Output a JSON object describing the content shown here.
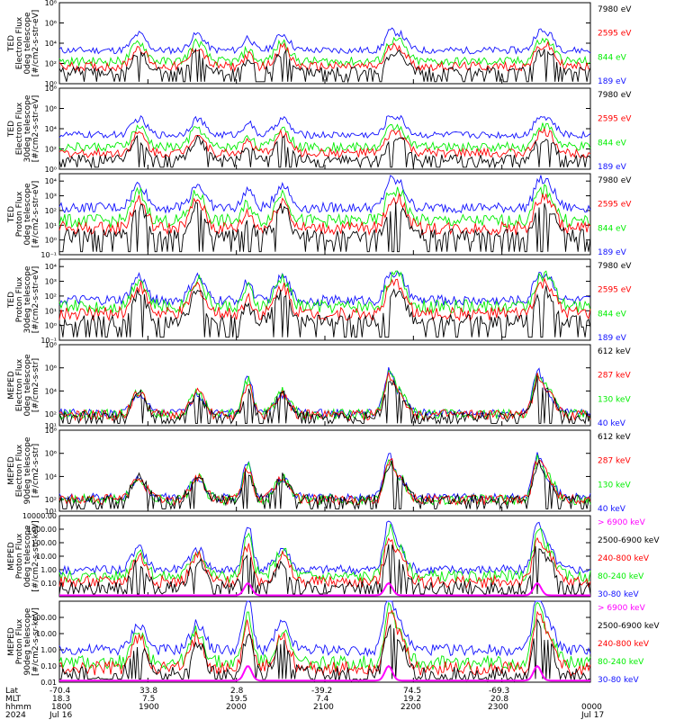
{
  "colors": {
    "blue": "#1010ff",
    "red": "#ff0000",
    "green": "#00ee00",
    "black": "#000000",
    "magenta": "#ff00ff"
  },
  "chart_data": [
    {
      "type": "line",
      "ylabel": [
        "TED",
        "Electron Flux",
        "0deg telescope",
        "[#/cm2-s-str-eV]"
      ],
      "log": true,
      "ylim_exp": [
        0,
        8
      ],
      "ticks": [
        {
          "e": 0,
          "t": "10⁰"
        },
        {
          "e": 2,
          "t": "10²"
        },
        {
          "e": 4,
          "t": "10⁴"
        },
        {
          "e": 6,
          "t": "10⁶"
        },
        {
          "e": 8,
          "t": "10⁸"
        }
      ],
      "baseline": [
        1.2,
        2.2,
        3.3
      ],
      "series": [
        {
          "name": "7980 eV",
          "color": "black"
        },
        {
          "name": "2595 eV",
          "color": "red"
        },
        {
          "name": "844 eV",
          "color": "green"
        },
        {
          "name": "189 eV",
          "color": "blue"
        }
      ]
    },
    {
      "type": "line",
      "ylabel": [
        "TED",
        "Electron Flux",
        "30deg telescope",
        "[#/cm2-s-str-eV]"
      ],
      "log": true,
      "ylim_exp": [
        0,
        8
      ],
      "ticks": [
        {
          "e": 0,
          "t": "10⁰"
        },
        {
          "e": 2,
          "t": "10²"
        },
        {
          "e": 4,
          "t": "10⁴"
        },
        {
          "e": 6,
          "t": "10⁶"
        },
        {
          "e": 8,
          "t": "10⁸"
        }
      ],
      "baseline": [
        1.0,
        2.2,
        3.4
      ],
      "series": [
        {
          "name": "7980 eV",
          "color": "black"
        },
        {
          "name": "2595 eV",
          "color": "red"
        },
        {
          "name": "844 eV",
          "color": "green"
        },
        {
          "name": "189 eV",
          "color": "blue"
        }
      ]
    },
    {
      "type": "line",
      "ylabel": [
        "TED",
        "Proton Flux",
        "0deg telescope",
        "[#/cm2-s-str-eV]"
      ],
      "log": true,
      "ylim_exp": [
        -1,
        4.5
      ],
      "ticks": [
        {
          "e": -1,
          "t": "10⁻¹"
        },
        {
          "e": 0,
          "t": "10⁰"
        },
        {
          "e": 1,
          "t": "10¹"
        },
        {
          "e": 2,
          "t": "10²"
        },
        {
          "e": 3,
          "t": "10³"
        },
        {
          "e": 4,
          "t": "10⁴"
        }
      ],
      "baseline": [
        0.3,
        1.3,
        2.2
      ],
      "series": [
        {
          "name": "7980 eV",
          "color": "black"
        },
        {
          "name": "2595 eV",
          "color": "red"
        },
        {
          "name": "844 eV",
          "color": "green"
        },
        {
          "name": "189 eV",
          "color": "blue"
        }
      ]
    },
    {
      "type": "line",
      "ylabel": [
        "TED",
        "Proton Flux",
        "30deg telescope",
        "[#/cm2-s-str-eV]"
      ],
      "log": true,
      "ylim_exp": [
        -1,
        4.5
      ],
      "ticks": [
        {
          "e": -1,
          "t": "10⁻¹"
        },
        {
          "e": 0,
          "t": "10⁰"
        },
        {
          "e": 1,
          "t": "10¹"
        },
        {
          "e": 2,
          "t": "10²"
        },
        {
          "e": 3,
          "t": "10³"
        },
        {
          "e": 4,
          "t": "10⁴"
        }
      ],
      "baseline": [
        0.3,
        1.3,
        1.7
      ],
      "series": [
        {
          "name": "7980 eV",
          "color": "black"
        },
        {
          "name": "2595 eV",
          "color": "red"
        },
        {
          "name": "844 eV",
          "color": "green"
        },
        {
          "name": "189 eV",
          "color": "blue"
        }
      ]
    },
    {
      "type": "line",
      "ylabel": [
        "MEPED",
        "Electron Flux",
        "0deg telescope",
        "[#/cm2-s-str]"
      ],
      "log": true,
      "ylim_exp": [
        1,
        8
      ],
      "ticks": [
        {
          "e": 1,
          "t": "10¹"
        },
        {
          "e": 2,
          "t": "10²"
        },
        {
          "e": 4,
          "t": "10⁴"
        },
        {
          "e": 6,
          "t": "10⁶"
        },
        {
          "e": 8,
          "t": "10⁸"
        }
      ],
      "baseline": [
        1.8,
        2.0,
        2.1
      ],
      "series": [
        {
          "name": "612 keV",
          "color": "black"
        },
        {
          "name": "287 keV",
          "color": "red"
        },
        {
          "name": "130 keV",
          "color": "green"
        },
        {
          "name": "40 keV",
          "color": "blue"
        }
      ]
    },
    {
      "type": "line",
      "ylabel": [
        "MEPED",
        "Electron Flux",
        "90deg telescope",
        "[#/cm2-s-str]"
      ],
      "log": true,
      "ylim_exp": [
        1,
        8
      ],
      "ticks": [
        {
          "e": 1,
          "t": "10¹"
        },
        {
          "e": 2,
          "t": "10²"
        },
        {
          "e": 4,
          "t": "10⁴"
        },
        {
          "e": 6,
          "t": "10⁶"
        },
        {
          "e": 8,
          "t": "10⁸"
        }
      ],
      "baseline": [
        2.0,
        2.0,
        2.2
      ],
      "series": [
        {
          "name": "612 keV",
          "color": "black"
        },
        {
          "name": "287 keV",
          "color": "red"
        },
        {
          "name": "130 keV",
          "color": "green"
        },
        {
          "name": "40 keV",
          "color": "blue"
        }
      ]
    },
    {
      "type": "line",
      "ylabel": [
        "MEPED",
        "Proton Flux",
        "0deg telescope",
        "[#/cm2-s-str-keV]"
      ],
      "log": true,
      "ylim_exp": [
        -2,
        4
      ],
      "ticks": [
        {
          "e": -1,
          "t": "0.10"
        },
        {
          "e": 0,
          "t": "1.00"
        },
        {
          "e": 1,
          "t": "10.00"
        },
        {
          "e": 2,
          "t": "100.00"
        },
        {
          "e": 3,
          "t": "1000.00"
        },
        {
          "e": 4,
          "t": "10000.00"
        }
      ],
      "baseline": [
        -1.3,
        -0.5,
        0.0
      ],
      "series": [
        {
          "name": "> 6900 keV",
          "color": "magenta"
        },
        {
          "name": "2500-6900 keV",
          "color": "black"
        },
        {
          "name": "240-800 keV",
          "color": "red"
        },
        {
          "name": "80-240 keV",
          "color": "green"
        },
        {
          "name": "30-80 keV",
          "color": "blue"
        }
      ]
    },
    {
      "type": "line",
      "ylabel": [
        "MEPED",
        "Proton Flux",
        "90deg telescope",
        "[#/cm2-s-sr-keV]"
      ],
      "log": true,
      "ylim_exp": [
        -2,
        3
      ],
      "ticks": [
        {
          "e": -2,
          "t": "0.01"
        },
        {
          "e": -1,
          "t": "0.10"
        },
        {
          "e": 0,
          "t": "1.00"
        },
        {
          "e": 1,
          "t": "10.00"
        },
        {
          "e": 2,
          "t": "100.00"
        }
      ],
      "baseline": [
        -1.5,
        -0.8,
        0.0
      ],
      "series": [
        {
          "name": "> 6900 keV",
          "color": "magenta"
        },
        {
          "name": "2500-6900 keV",
          "color": "black"
        },
        {
          "name": "240-800 keV",
          "color": "red"
        },
        {
          "name": "80-240 keV",
          "color": "green"
        },
        {
          "name": "30-80 keV",
          "color": "blue"
        }
      ]
    }
  ],
  "time_axis": {
    "rows": [
      "Lat",
      "MLT",
      "hhmm",
      "2024"
    ],
    "columns": [
      {
        "lat": "-70.4",
        "mlt": "18.3",
        "hhmm": "1800",
        "date": "Jul 16"
      },
      {
        "lat": "33.8",
        "mlt": "7.5",
        "hhmm": "1900",
        "date": ""
      },
      {
        "lat": "2.8",
        "mlt": "19.5",
        "hhmm": "2000",
        "date": ""
      },
      {
        "lat": "-39.2",
        "mlt": "7.4",
        "hhmm": "2100",
        "date": ""
      },
      {
        "lat": "74.5",
        "mlt": "19.2",
        "hhmm": "2200",
        "date": ""
      },
      {
        "lat": "-69.3",
        "mlt": "20.8",
        "hhmm": "2300",
        "date": ""
      },
      {
        "lat": "",
        "mlt": "",
        "hhmm": "0000",
        "date": "Jul 17"
      }
    ]
  }
}
